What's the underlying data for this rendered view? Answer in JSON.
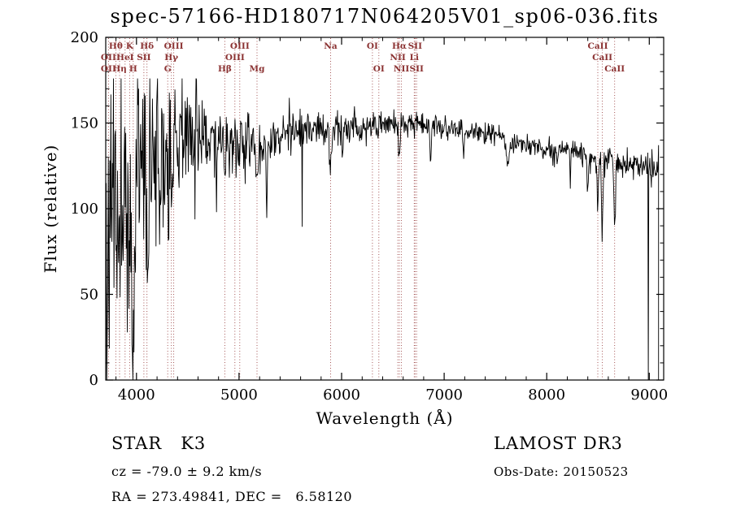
{
  "chart_data": {
    "type": "line",
    "title": "spec-57166-HD180717N064205V01_sp06-036.fits",
    "xlabel": "Wavelength (Å)",
    "ylabel": "Flux (relative)",
    "xlim": [
      3700,
      9140
    ],
    "ylim": [
      0,
      200
    ],
    "xticks": [
      4000,
      5000,
      6000,
      7000,
      8000,
      9000
    ],
    "yticks": [
      0,
      50,
      100,
      150,
      200
    ],
    "x_minor_step": 200,
    "y_minor_step": 10,
    "line_color": "#000000",
    "feature_color": "#9c4444",
    "feature_label_color": "#8b3232",
    "seed": 11,
    "sample_step_angstrom": 5,
    "continuum_anchors": [
      [
        3700,
        85
      ],
      [
        3760,
        100
      ],
      [
        3820,
        110
      ],
      [
        3900,
        112
      ],
      [
        3980,
        112
      ],
      [
        4050,
        118
      ],
      [
        4150,
        122
      ],
      [
        4250,
        130
      ],
      [
        4350,
        137
      ],
      [
        4450,
        141
      ],
      [
        4550,
        144
      ],
      [
        4650,
        145
      ],
      [
        4750,
        142
      ],
      [
        4850,
        140
      ],
      [
        4950,
        137
      ],
      [
        5050,
        136
      ],
      [
        5150,
        137
      ],
      [
        5250,
        138
      ],
      [
        5350,
        141
      ],
      [
        5450,
        143
      ],
      [
        5550,
        145
      ],
      [
        5700,
        146
      ],
      [
        5850,
        146
      ],
      [
        6000,
        147
      ],
      [
        6150,
        148
      ],
      [
        6300,
        148
      ],
      [
        6450,
        149
      ],
      [
        6600,
        150
      ],
      [
        6750,
        149
      ],
      [
        6900,
        148
      ],
      [
        7050,
        147
      ],
      [
        7200,
        146
      ],
      [
        7350,
        146
      ],
      [
        7500,
        144
      ],
      [
        7650,
        141
      ],
      [
        7800,
        137
      ],
      [
        7950,
        134
      ],
      [
        8100,
        133
      ],
      [
        8250,
        134
      ],
      [
        8400,
        131
      ],
      [
        8550,
        129
      ],
      [
        8700,
        127
      ],
      [
        8850,
        126
      ],
      [
        9000,
        124
      ],
      [
        9090,
        123
      ]
    ],
    "noise_sigma_anchors": [
      [
        3700,
        95
      ],
      [
        3780,
        85
      ],
      [
        3860,
        80
      ],
      [
        3940,
        75
      ],
      [
        4020,
        68
      ],
      [
        4100,
        62
      ],
      [
        4200,
        50
      ],
      [
        4300,
        42
      ],
      [
        4400,
        34
      ],
      [
        4500,
        28
      ],
      [
        4600,
        24
      ],
      [
        4700,
        22
      ],
      [
        4800,
        20
      ],
      [
        4900,
        19
      ],
      [
        5000,
        18
      ],
      [
        5100,
        17
      ],
      [
        5200,
        16
      ],
      [
        5300,
        14
      ],
      [
        5400,
        13
      ],
      [
        5500,
        12
      ],
      [
        5650,
        11
      ],
      [
        5800,
        10
      ],
      [
        6000,
        10
      ],
      [
        6200,
        9
      ],
      [
        6400,
        8
      ],
      [
        6600,
        8
      ],
      [
        6800,
        8
      ],
      [
        7000,
        7
      ],
      [
        7300,
        7
      ],
      [
        7600,
        7
      ],
      [
        7900,
        7
      ],
      [
        8200,
        7
      ],
      [
        8500,
        8
      ],
      [
        8800,
        9
      ],
      [
        9090,
        10
      ]
    ],
    "absorption_lines": [
      {
        "center": 3933,
        "depth": 70,
        "width": 10
      },
      {
        "center": 3968,
        "depth": 65,
        "width": 10
      },
      {
        "center": 4101,
        "depth": 38,
        "width": 7
      },
      {
        "center": 4227,
        "depth": 30,
        "width": 6
      },
      {
        "center": 4304,
        "depth": 28,
        "width": 9
      },
      {
        "center": 4340,
        "depth": 25,
        "width": 7
      },
      {
        "center": 4780,
        "depth": 30,
        "width": 4
      },
      {
        "center": 4861,
        "depth": 22,
        "width": 7
      },
      {
        "center": 5175,
        "depth": 20,
        "width": 12
      },
      {
        "center": 5270,
        "depth": 42,
        "width": 4
      },
      {
        "center": 5893,
        "depth": 30,
        "width": 9
      },
      {
        "center": 6010,
        "depth": 25,
        "width": 4
      },
      {
        "center": 6563,
        "depth": 20,
        "width": 7
      },
      {
        "center": 6867,
        "depth": 18,
        "width": 6
      },
      {
        "center": 7190,
        "depth": 12,
        "width": 8
      },
      {
        "center": 7620,
        "depth": 15,
        "width": 18
      },
      {
        "center": 8230,
        "depth": 18,
        "width": 5
      },
      {
        "center": 8400,
        "depth": 20,
        "width": 5
      },
      {
        "center": 8498,
        "depth": 28,
        "width": 7
      },
      {
        "center": 8542,
        "depth": 45,
        "width": 7
      },
      {
        "center": 8662,
        "depth": 38,
        "width": 7
      }
    ],
    "zero_spikes": [
      8990
    ],
    "spectral_features": [
      {
        "label": "Hθ",
        "wave": 3798,
        "row": 1
      },
      {
        "label": "K",
        "wave": 3933,
        "row": 1
      },
      {
        "label": "Hδ",
        "wave": 4102,
        "row": 1
      },
      {
        "label": "OIII",
        "wave": 4363,
        "row": 1
      },
      {
        "label": "OIII",
        "wave": 5007,
        "row": 1
      },
      {
        "label": "Na",
        "wave": 5893,
        "row": 1
      },
      {
        "label": "OI",
        "wave": 6300,
        "row": 1
      },
      {
        "label": "Hα",
        "wave": 6563,
        "row": 1
      },
      {
        "label": "SII",
        "wave": 6716,
        "row": 1
      },
      {
        "label": "CaII",
        "wave": 8498,
        "row": 1
      },
      {
        "label": "OII",
        "wave": 3727,
        "row": 2
      },
      {
        "label": "HeI",
        "wave": 3889,
        "row": 2
      },
      {
        "label": "SII",
        "wave": 4072,
        "row": 2
      },
      {
        "label": "Hγ",
        "wave": 4340,
        "row": 2
      },
      {
        "label": "OIII",
        "wave": 4959,
        "row": 2
      },
      {
        "label": "NII",
        "wave": 6548,
        "row": 2
      },
      {
        "label": "Li",
        "wave": 6708,
        "row": 2
      },
      {
        "label": "CaII",
        "wave": 8542,
        "row": 2
      },
      {
        "label": "OII",
        "wave": 3727,
        "row": 3
      },
      {
        "label": "Hη",
        "wave": 3835,
        "row": 3
      },
      {
        "label": "H",
        "wave": 3968,
        "row": 3
      },
      {
        "label": "G",
        "wave": 4304,
        "row": 3
      },
      {
        "label": "Hβ",
        "wave": 4861,
        "row": 3
      },
      {
        "label": "Mg",
        "wave": 5175,
        "row": 3
      },
      {
        "label": "OI",
        "wave": 6363,
        "row": 3
      },
      {
        "label": "NII",
        "wave": 6583,
        "row": 3
      },
      {
        "label": "SII",
        "wave": 6731,
        "row": 3
      },
      {
        "label": "CaII",
        "wave": 8662,
        "row": 3
      }
    ]
  },
  "annotations": {
    "class_label": "STAR   K3",
    "survey": "LAMOST DR3",
    "cz": "cz = -79.0 ± 9.2 km/s",
    "obs_date": "Obs-Date: 20150523",
    "coords": "RA = 273.49841, DEC =   6.58120"
  }
}
